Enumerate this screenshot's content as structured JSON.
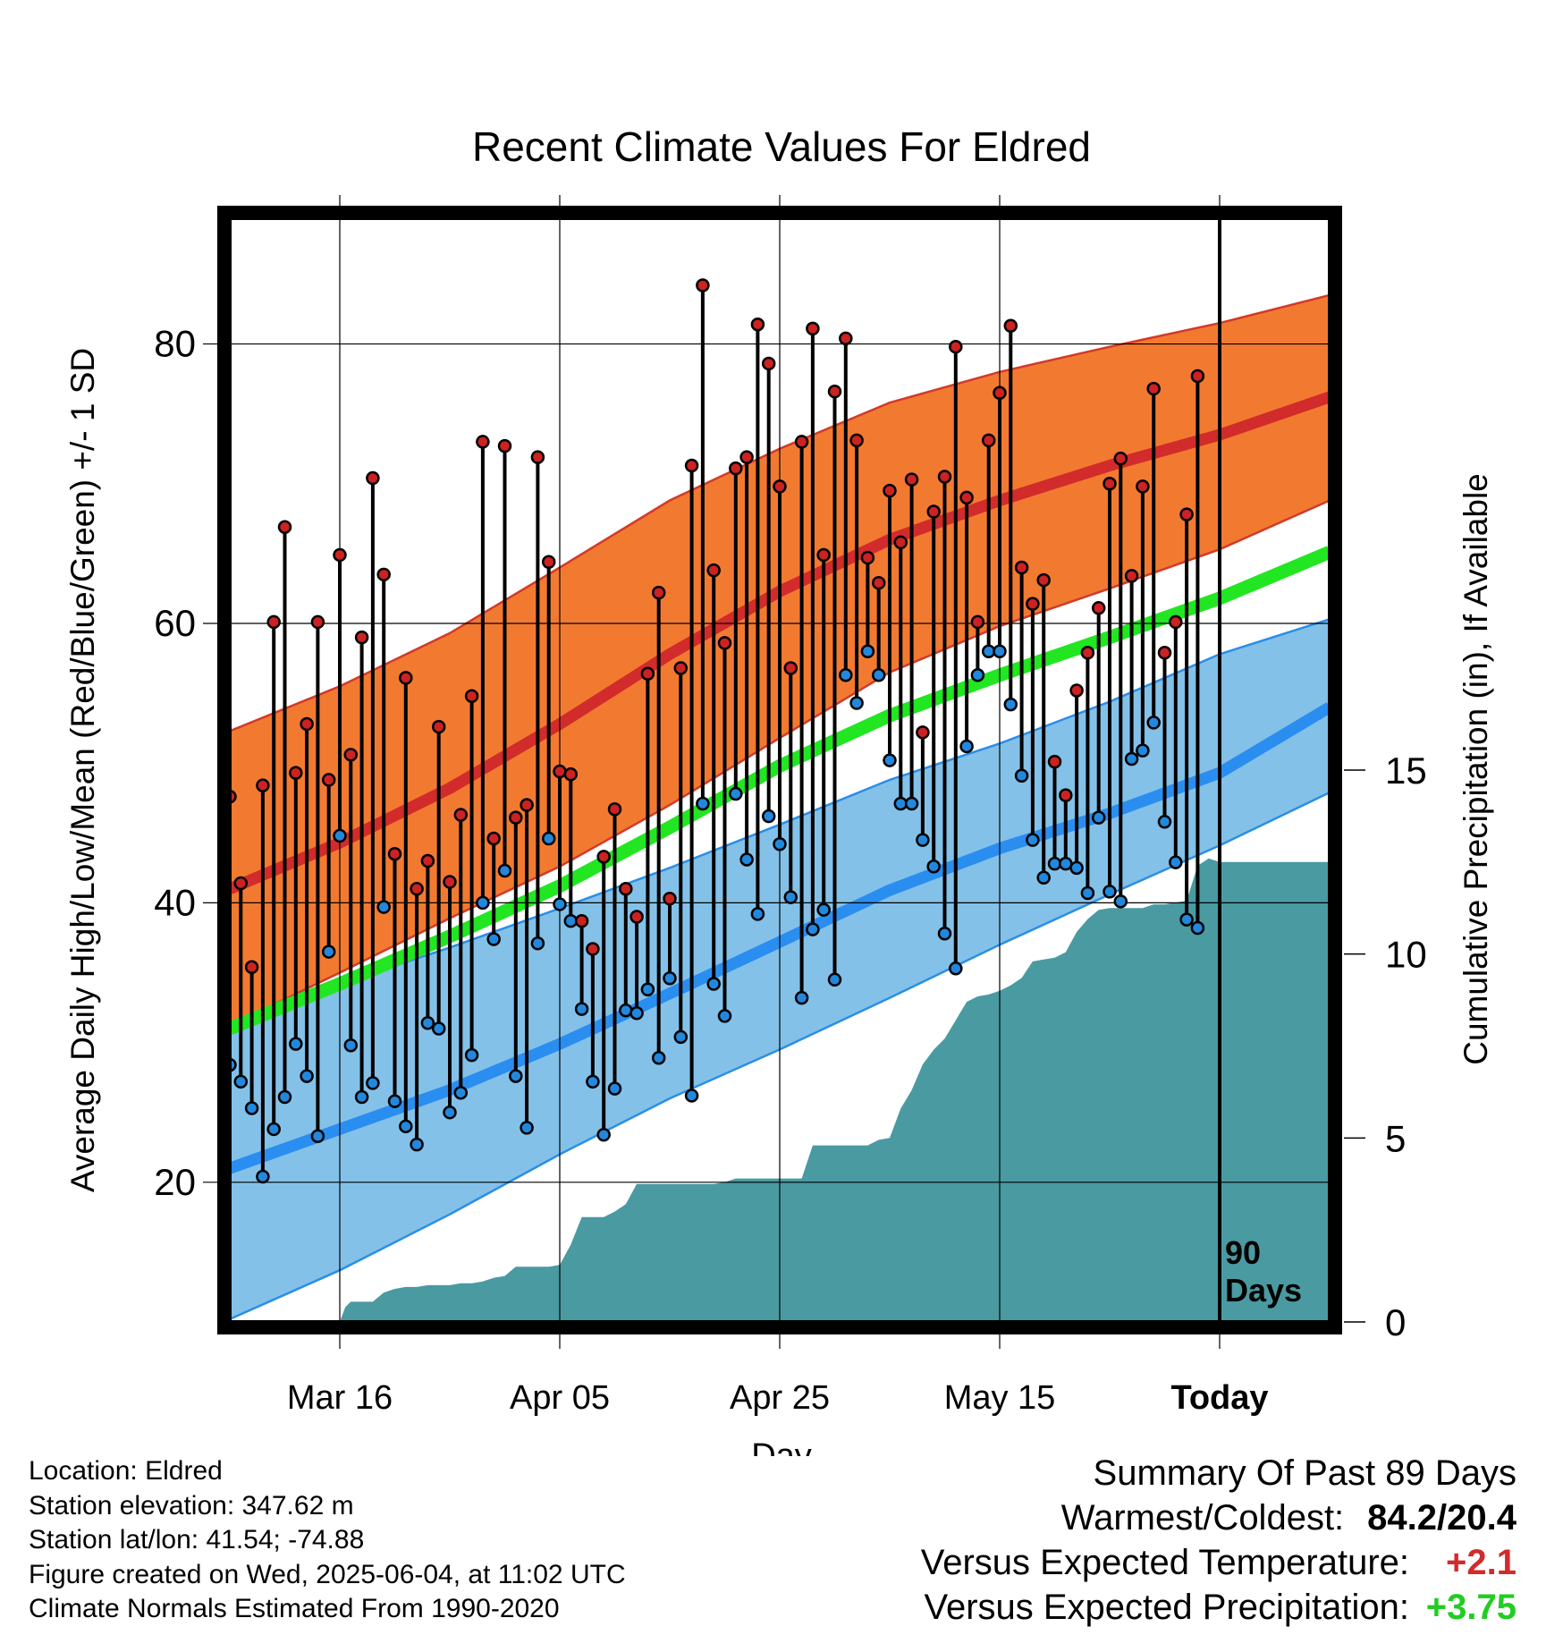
{
  "chart_data": {
    "type": "line",
    "title": "Recent Climate Values For Eldred",
    "xlabel": "Day",
    "ylabel": "Average Daily High/Low/Mean (Red/Blue/Green) +/- 1 SD",
    "y2label": "Cumulative Precipitation (in), If Available",
    "start_date": "2025-03-06",
    "x_range_days": [
      0,
      100
    ],
    "ylim": [
      10,
      89
    ],
    "y2lim": [
      0,
      30
    ],
    "x_ticks": [
      {
        "day": 10,
        "label": "Mar 16",
        "bold": false
      },
      {
        "day": 30,
        "label": "Apr 05",
        "bold": false
      },
      {
        "day": 50,
        "label": "Apr 25",
        "bold": false
      },
      {
        "day": 70,
        "label": "May 15",
        "bold": false
      },
      {
        "day": 90,
        "label": "Today",
        "bold": true
      }
    ],
    "y_ticks": [
      20,
      40,
      60,
      80
    ],
    "y_minor_ticks": [
      30,
      50,
      70
    ],
    "y2_ticks": [
      0,
      5,
      10,
      15
    ],
    "grid": true,
    "today_marker": {
      "day": 90,
      "label_line1": "90",
      "label_line2": "Days"
    },
    "normals": {
      "x": [
        0,
        10,
        20,
        30,
        40,
        50,
        60,
        70,
        80,
        90,
        100
      ],
      "high_mean": [
        41,
        44.3,
        48.2,
        52.8,
        57.8,
        62.3,
        66,
        68.8,
        71.3,
        73.5,
        76.2
      ],
      "high_upper": [
        52.3,
        55.5,
        59.3,
        64,
        68.8,
        72.5,
        75.8,
        78,
        79.8,
        81.5,
        83.5
      ],
      "high_lower": [
        31.2,
        35,
        38.9,
        42.6,
        47,
        51.8,
        56.5,
        59.8,
        62.5,
        65.3,
        68.8
      ],
      "mean": [
        31,
        34.2,
        37.6,
        41.2,
        45.4,
        49.8,
        53.4,
        56.3,
        59,
        61.8,
        65.1
      ],
      "low_mean": [
        21,
        23.8,
        26.6,
        29.9,
        33.5,
        37.2,
        40.9,
        43.9,
        46.4,
        49.3,
        54
      ],
      "low_upper": [
        31.8,
        34.2,
        36.8,
        39.6,
        42.5,
        45.6,
        48.8,
        51.4,
        54.4,
        57.8,
        60.3
      ],
      "low_lower": [
        10.2,
        13.7,
        17.7,
        22,
        26,
        29.5,
        33.2,
        37,
        40.6,
        44.1,
        47.9
      ]
    },
    "series": [
      {
        "name": "Daily High",
        "color": "#cc2222",
        "values": [
          47.6,
          41.4,
          35.4,
          48.4,
          60.1,
          66.9,
          49.3,
          52.8,
          60.1,
          48.8,
          64.9,
          50.6,
          59,
          70.4,
          63.5,
          43.5,
          56.1,
          41,
          43,
          52.6,
          41.5,
          46.3,
          54.8,
          73,
          44.6,
          72.7,
          46.1,
          47,
          71.9,
          64.4,
          49.4,
          49.2,
          38.7,
          36.7,
          43.3,
          46.7,
          41,
          39,
          56.4,
          62.2,
          40.3,
          56.8,
          71.3,
          84.2,
          63.8,
          58.6,
          71.1,
          71.9,
          81.4,
          78.6,
          69.8,
          56.8,
          73,
          81.1,
          64.9,
          76.6,
          80.4,
          73.1,
          64.7,
          62.9,
          69.5,
          65.8,
          70.3,
          52.2,
          68,
          70.5,
          79.8,
          69,
          60.1,
          73.1,
          76.5,
          81.3,
          64,
          61.4,
          63.1,
          50.1,
          47.7,
          55.2,
          57.9,
          61.1,
          70,
          71.8,
          63.4,
          69.8,
          76.8,
          57.9,
          60.1,
          67.8,
          77.7
        ]
      },
      {
        "name": "Daily Low",
        "color": "#2288dd",
        "values": [
          28.4,
          27.2,
          25.3,
          20.4,
          23.8,
          26.1,
          29.9,
          27.6,
          23.3,
          36.5,
          44.8,
          29.8,
          26.1,
          27.1,
          39.7,
          25.8,
          24,
          22.7,
          31.4,
          31,
          25,
          26.4,
          29.1,
          40,
          37.4,
          42.3,
          27.6,
          23.9,
          37.1,
          44.6,
          39.9,
          38.7,
          32.4,
          27.2,
          23.4,
          26.7,
          32.3,
          32.1,
          33.8,
          28.9,
          34.6,
          30.4,
          26.2,
          47.1,
          34.2,
          31.9,
          47.8,
          43.1,
          39.2,
          46.2,
          44.2,
          40.4,
          33.2,
          38.1,
          39.5,
          34.5,
          56.3,
          54.3,
          58,
          56.3,
          50.2,
          47.1,
          47.1,
          44.5,
          42.6,
          37.8,
          35.3,
          51.2,
          56.3,
          58,
          58,
          54.2,
          49.1,
          44.5,
          41.8,
          42.8,
          42.8,
          42.5,
          40.7,
          46.1,
          40.8,
          40.1,
          50.3,
          50.9,
          52.9,
          45.8,
          42.9,
          38.8,
          38.2
        ]
      }
    ],
    "precipitation": {
      "name": "Cumulative Precipitation",
      "color": "#4a9aa2",
      "x": [
        10,
        10.5,
        11,
        12,
        13,
        14,
        15,
        16,
        17,
        18,
        19,
        20,
        21,
        22,
        23,
        24,
        25,
        26,
        27,
        28,
        29,
        30,
        31,
        32,
        33,
        34,
        35,
        36,
        37,
        38,
        39,
        40,
        41,
        42,
        43,
        44,
        45,
        46,
        47,
        48,
        49,
        50,
        51,
        52,
        53,
        54,
        55,
        56,
        57,
        58,
        59,
        60,
        61,
        62,
        63,
        64,
        65,
        66,
        67,
        68,
        69,
        70,
        71,
        72,
        73,
        74,
        75,
        76,
        77,
        78,
        79,
        80,
        81,
        82,
        83,
        84,
        85,
        86,
        87,
        88,
        89,
        90,
        91,
        95,
        100
      ],
      "values": [
        0,
        0.4,
        0.55,
        0.55,
        0.55,
        0.8,
        0.9,
        0.95,
        0.95,
        1,
        1,
        1,
        1.05,
        1.05,
        1.1,
        1.2,
        1.25,
        1.5,
        1.5,
        1.5,
        1.5,
        1.55,
        2.1,
        2.85,
        2.85,
        2.85,
        3.0,
        3.2,
        3.75,
        3.75,
        3.75,
        3.75,
        3.75,
        3.75,
        3.75,
        3.75,
        3.8,
        3.9,
        3.9,
        3.9,
        3.9,
        3.9,
        3.9,
        3.9,
        4.8,
        4.8,
        4.8,
        4.8,
        4.8,
        4.8,
        4.95,
        5.0,
        5.8,
        6.3,
        7.0,
        7.4,
        7.7,
        8.2,
        8.7,
        8.85,
        8.9,
        9.0,
        9.15,
        9.35,
        9.8,
        9.85,
        9.9,
        10.05,
        10.6,
        10.95,
        11.2,
        11.25,
        11.25,
        11.25,
        11.25,
        11.35,
        11.35,
        11.4,
        11.45,
        12.4,
        12.6,
        12.5,
        12.5,
        12.5,
        12.5
      ]
    }
  },
  "info": {
    "location": "Location: Eldred",
    "elevation": "Station elevation: 347.62 m",
    "latlon": "Station lat/lon: 41.54; -74.88",
    "created": "Figure created on Wed, 2025-06-04, at 11:02 UTC",
    "normals": "Climate Normals Estimated From 1990-2020"
  },
  "summary": {
    "title": "Summary Of Past 89 Days",
    "warm_cold_label": "Warmest/Coldest:",
    "warm_cold_value": "84.2/20.4",
    "temp_label": "Versus Expected Temperature:",
    "temp_value": "+2.1",
    "temp_color": "#d22b2b",
    "precip_label": "Versus Expected Precipitation:",
    "precip_value": "+3.75",
    "precip_color": "#22cc22"
  }
}
